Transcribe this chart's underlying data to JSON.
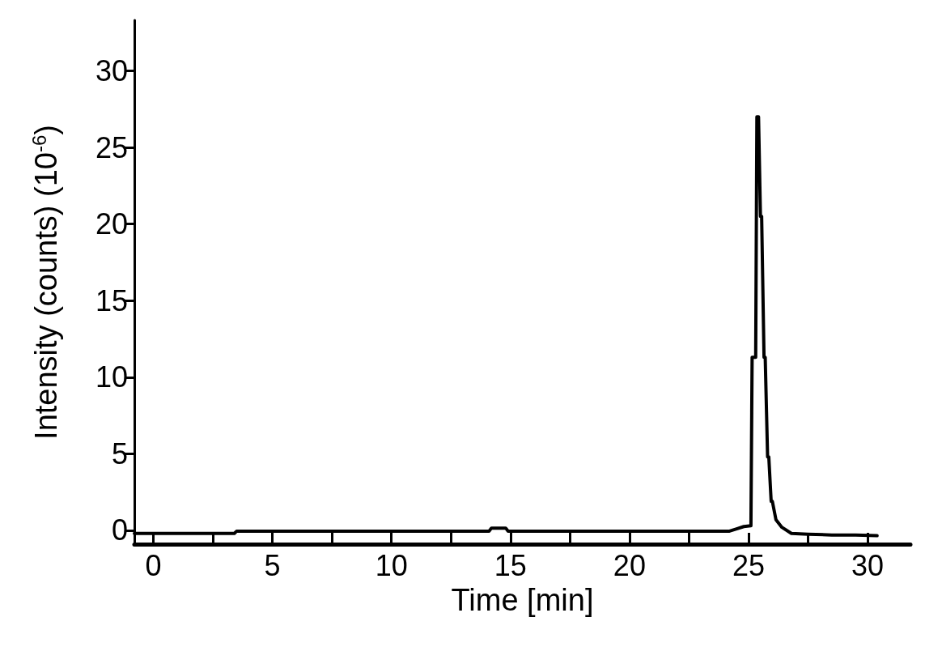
{
  "chart_data": {
    "type": "line",
    "xlabel": "Time [min]",
    "ylabel": "Intensity (counts) (10$^{-6}$)",
    "x": [
      -0.8,
      3.4,
      3.5,
      14.1,
      14.2,
      14.8,
      14.9,
      24.2,
      24.5,
      24.8,
      25.1,
      25.15,
      25.3,
      25.35,
      25.42,
      25.5,
      25.55,
      25.65,
      25.7,
      25.8,
      25.85,
      25.95,
      26.0,
      26.15,
      26.4,
      26.8,
      27.5,
      28.5,
      29.5,
      30.4
    ],
    "series": [
      {
        "color": "#000000",
        "values": [
          -0.2,
          -0.2,
          -0.05,
          -0.05,
          0.15,
          0.15,
          -0.05,
          -0.05,
          0.1,
          0.25,
          0.3,
          11.3,
          11.3,
          27.0,
          27.0,
          20.5,
          20.5,
          11.3,
          11.3,
          4.8,
          4.8,
          1.9,
          1.9,
          0.7,
          0.2,
          -0.2,
          -0.25,
          -0.3,
          -0.3,
          -0.35
        ]
      }
    ],
    "xlim": [
      -0.8,
      31.8
    ],
    "ylim": [
      -0.9,
      33.3
    ],
    "xticks": [
      0,
      {
        "value": 2.5,
        "label": null
      },
      5,
      {
        "value": 7.5,
        "label": null
      },
      10,
      {
        "value": 12.5,
        "label": null
      },
      15,
      {
        "value": 17.5,
        "label": null
      },
      20,
      {
        "value": 22.5,
        "label": null
      },
      25,
      {
        "value": 27.5,
        "label": null
      },
      30
    ],
    "yticks": [
      0,
      5,
      10,
      15,
      20,
      25,
      30
    ],
    "grid": false,
    "marker": "none",
    "line_style": "solid"
  }
}
